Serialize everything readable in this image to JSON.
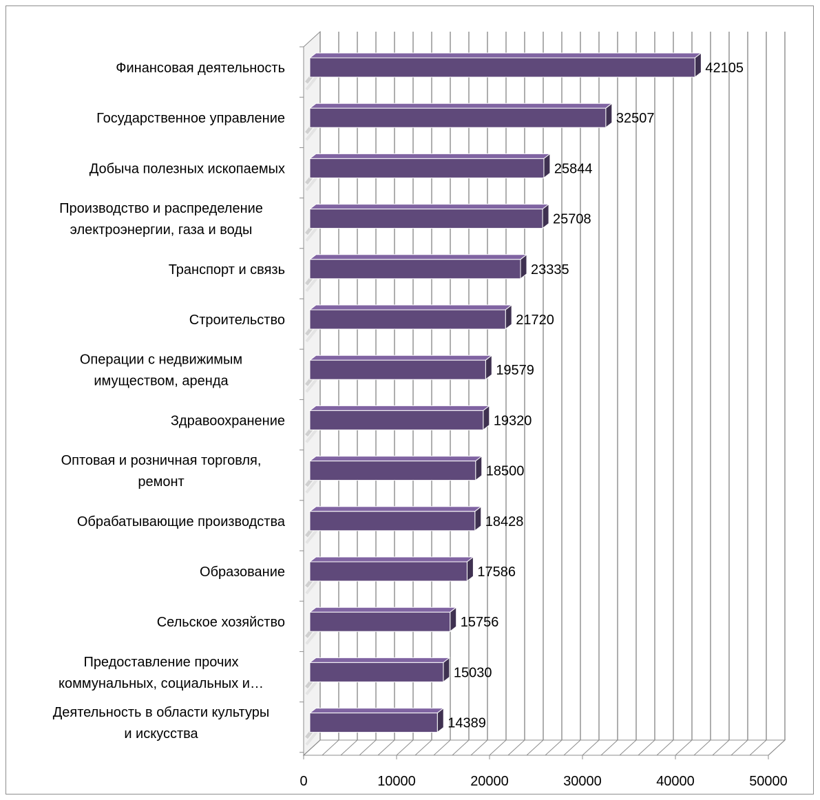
{
  "chart_data": {
    "type": "bar",
    "orientation": "horizontal",
    "style": "3d",
    "categories": [
      "Финансовая деятельность",
      "Государственное управление",
      "Добыча полезных ископаемых",
      "Производство и распределение электроэнергии, газа и воды",
      "Транспорт и связь",
      "Строительство",
      "Операции с недвижимым имуществом, аренда",
      "Здравоохранение",
      "Оптовая и розничная торговля, ремонт",
      "Обрабатывающие производства",
      "Образование",
      "Сельское хозяйство",
      "Предоставление прочих коммунальных, социальных и…",
      "Деятельность в области культуры и искусства"
    ],
    "category_lines": [
      [
        "Финансовая деятельность"
      ],
      [
        "Государственное управление"
      ],
      [
        "Добыча полезных ископаемых"
      ],
      [
        "Производство и распределение",
        "электроэнергии, газа и воды"
      ],
      [
        "Транспорт и связь"
      ],
      [
        "Строительство"
      ],
      [
        "Операции с недвижимым",
        "имуществом, аренда"
      ],
      [
        "Здравоохранение"
      ],
      [
        "Оптовая и розничная торговля,",
        "ремонт"
      ],
      [
        "Обрабатывающие производства"
      ],
      [
        "Образование"
      ],
      [
        "Сельское хозяйство"
      ],
      [
        "Предоставление прочих",
        "коммунальных, социальных и…"
      ],
      [
        "Деятельность в области культуры",
        "и искусства"
      ]
    ],
    "values": [
      42105,
      32507,
      25844,
      25708,
      23335,
      21720,
      19579,
      19320,
      18500,
      18428,
      17586,
      15756,
      15030,
      14389
    ],
    "value_labels": [
      "42105",
      "32507",
      "25844",
      "25708",
      "23335",
      "21720",
      "19579",
      "19320",
      "18500",
      "18428",
      "17586",
      "15756",
      "15030",
      "14389"
    ],
    "xlim": [
      0,
      50000
    ],
    "xticks": [
      0,
      10000,
      20000,
      30000,
      40000,
      50000
    ],
    "xtick_labels": [
      "0",
      "10000",
      "20000",
      "30000",
      "40000",
      "50000"
    ],
    "minor_grid_step": 2000,
    "grid": true,
    "legend": "none",
    "colors": {
      "bar_front": "#5f497a",
      "bar_top": "#8064a2",
      "bar_side": "#3f3151",
      "bar_edge": "#ffffff",
      "grid": "#8c8c8c",
      "axis": "#8c8c8c"
    }
  }
}
